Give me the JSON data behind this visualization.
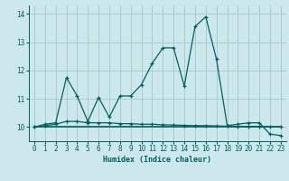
{
  "xlabel": "Humidex (Indice chaleur)",
  "ylabel": "",
  "bg_color": "#cce8ec",
  "grid_color": "#aacccc",
  "line_color": "#006060",
  "xlim": [
    -0.5,
    23.5
  ],
  "ylim": [
    9.5,
    14.3
  ],
  "yticks": [
    10,
    11,
    12,
    13,
    14
  ],
  "xticks": [
    0,
    1,
    2,
    3,
    4,
    5,
    6,
    7,
    8,
    9,
    10,
    11,
    12,
    13,
    14,
    15,
    16,
    17,
    18,
    19,
    20,
    21,
    22,
    23
  ],
  "line1_x": [
    0,
    1,
    2,
    3,
    4,
    5,
    6,
    7,
    8,
    9,
    10,
    11,
    12,
    13,
    14,
    15,
    16,
    17,
    18,
    19,
    20,
    21,
    22,
    23
  ],
  "line1_y": [
    10.0,
    10.1,
    10.15,
    11.75,
    11.1,
    10.2,
    11.05,
    10.35,
    11.1,
    11.1,
    11.5,
    12.25,
    12.8,
    12.8,
    11.45,
    13.55,
    13.9,
    12.4,
    10.05,
    10.1,
    10.15,
    10.15,
    9.75,
    9.7
  ],
  "line2_x": [
    0,
    1,
    2,
    3,
    4,
    5,
    6,
    7,
    8,
    9,
    10,
    11,
    12,
    13,
    14,
    15,
    16,
    17,
    18,
    19,
    20,
    21,
    22,
    23
  ],
  "line2_y": [
    10.0,
    10.05,
    10.1,
    10.2,
    10.2,
    10.15,
    10.15,
    10.15,
    10.12,
    10.12,
    10.1,
    10.1,
    10.08,
    10.07,
    10.06,
    10.05,
    10.05,
    10.04,
    10.03,
    10.02,
    10.02,
    10.02,
    10.01,
    10.0
  ],
  "line3_x": [
    0,
    23
  ],
  "line3_y": [
    10.0,
    10.0
  ]
}
